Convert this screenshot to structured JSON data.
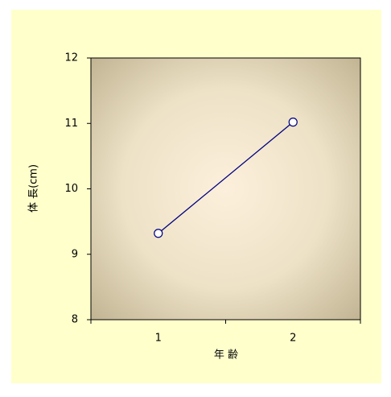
{
  "chart_data": {
    "type": "line",
    "categories": [
      "1",
      "2"
    ],
    "series": [
      {
        "name": null,
        "color": "#000080",
        "values": [
          9.32,
          11.02
        ]
      }
    ],
    "ylim": [
      8,
      12
    ],
    "yticks": [
      8,
      9,
      10,
      11,
      12
    ],
    "x_label": "年 齢",
    "y_label": "体 長(cm)"
  }
}
